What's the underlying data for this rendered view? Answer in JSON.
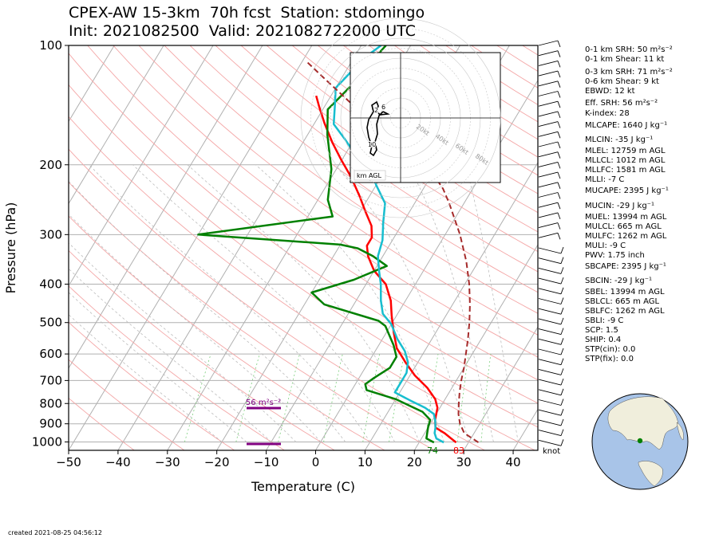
{
  "header": {
    "title_line1": "CPEX-AW 15-3km  70h fcst  Station: stdomingo",
    "title_line2": "Init: 2021082500  Valid: 2021082722000 UTC"
  },
  "footer": {
    "created": "created 2021-08-25 04:56:12"
  },
  "indices": [
    "0-1 km SRH: 50 m²s⁻²",
    "0-1 km Shear: 11 kt",
    "0-3 km SRH: 71 m²s⁻²",
    "0-6 km Shear: 9 kt",
    "EBWD: 12 kt",
    "Eff. SRH: 56 m²s⁻²",
    "K-index: 28",
    "MLCAPE: 1640 J kg⁻¹",
    "MLCIN: -35 J kg⁻¹",
    "MLEL: 12759 m AGL",
    "MLLCL: 1012 m AGL",
    "MLLFC: 1581 m AGL",
    "MLLI: -7 C",
    "MUCAPE: 2395 J kg⁻¹",
    "MUCIN: -29 J kg⁻¹",
    "MUEL: 13994 m AGL",
    "MULCL: 665 m AGL",
    "MULFC: 1262 m AGL",
    "MULI: -9 C",
    "PWV: 1.75 inch",
    "SBCAPE: 2395 J kg⁻¹",
    "SBCIN: -29 J kg⁻¹",
    "SBEL: 13994 m AGL",
    "SBLCL: 665 m AGL",
    "SBLFC: 1262 m AGL",
    "SBLI: -9 C",
    "SCP: 1.5",
    "SHIP: 0.4",
    "STP(cin): 0.0",
    "STP(fix): 0.0"
  ],
  "colors": {
    "temperature": "#ff0000",
    "dewpoint": "#008000",
    "wetbulb": "#17becf",
    "parcel": "#a52a2a",
    "srh_bar": "#800080",
    "globe_ocean": "#a8c4e8",
    "globe_land": "#f0eedc"
  },
  "chart_data": {
    "type": "line",
    "xlabel": "Temperature (C)",
    "ylabel": "Pressure (hPa)",
    "xlim": [
      -50,
      45
    ],
    "ylim": [
      1050,
      100
    ],
    "yscale": "log",
    "x_ticks": [
      "−50",
      "−40",
      "−30",
      "−20",
      "−10",
      "0",
      "10",
      "20",
      "30",
      "40"
    ],
    "y_ticks": [
      "100",
      "200",
      "300",
      "400",
      "500",
      "600",
      "700",
      "800",
      "900",
      "1000"
    ],
    "wind_unit_label": "knot",
    "surface_dewpoint_label": "74",
    "surface_temperature_label": "83",
    "srh_label": "56 m²s⁻²",
    "grid": true,
    "series": [
      {
        "key": "temperature",
        "points": [
          [
            27.5,
            1003
          ],
          [
            26,
            980
          ],
          [
            24,
            950
          ],
          [
            21.5,
            920
          ],
          [
            20.5,
            880
          ],
          [
            20,
            850
          ],
          [
            19.5,
            820
          ],
          [
            18,
            780
          ],
          [
            15,
            730
          ],
          [
            11,
            680
          ],
          [
            7.5,
            630
          ],
          [
            4,
            580
          ],
          [
            1.5,
            530
          ],
          [
            -1,
            480
          ],
          [
            -3,
            440
          ],
          [
            -6,
            400
          ],
          [
            -10,
            370
          ],
          [
            -13,
            340
          ],
          [
            -14.5,
            320
          ],
          [
            -14.5,
            305
          ],
          [
            -16,
            285
          ],
          [
            -19,
            262
          ],
          [
            -22,
            240
          ],
          [
            -26,
            215
          ],
          [
            -30,
            195
          ],
          [
            -34,
            176
          ],
          [
            -38,
            157
          ],
          [
            -41,
            143
          ],
          [
            -43,
            134
          ]
        ]
      },
      {
        "key": "dewpoint",
        "points": [
          [
            23,
            1003
          ],
          [
            21,
            980
          ],
          [
            20.5,
            950
          ],
          [
            20,
            920
          ],
          [
            19.5,
            880
          ],
          [
            17,
            840
          ],
          [
            10,
            780
          ],
          [
            3,
            740
          ],
          [
            2,
            715
          ],
          [
            3,
            690
          ],
          [
            5,
            650
          ],
          [
            5,
            610
          ],
          [
            3,
            570
          ],
          [
            -1,
            510
          ],
          [
            -3,
            495
          ],
          [
            -16,
            450
          ],
          [
            -20,
            420
          ],
          [
            -13,
            390
          ],
          [
            -8,
            360
          ],
          [
            -12,
            340
          ],
          [
            -16,
            325
          ],
          [
            -20,
            318
          ],
          [
            -50,
            300
          ],
          [
            -25,
            270
          ],
          [
            -28,
            245
          ],
          [
            -31,
            205
          ],
          [
            -36,
            168
          ],
          [
            -39,
            145
          ],
          [
            -37,
            125
          ],
          [
            -36,
            110
          ],
          [
            -35,
            100
          ]
        ]
      },
      {
        "key": "wetbulb",
        "points": [
          [
            25,
            1003
          ],
          [
            23,
            980
          ],
          [
            22,
            950
          ],
          [
            21.5,
            920
          ],
          [
            20.5,
            880
          ],
          [
            19.5,
            850
          ],
          [
            17,
            820
          ],
          [
            13,
            785
          ],
          [
            9,
            750
          ],
          [
            9,
            710
          ],
          [
            9,
            670
          ],
          [
            8,
            630
          ],
          [
            6,
            590
          ],
          [
            3,
            550
          ],
          [
            0,
            505
          ],
          [
            -3,
            475
          ],
          [
            -5,
            440
          ],
          [
            -7,
            400
          ],
          [
            -9,
            370
          ],
          [
            -11,
            340
          ],
          [
            -12,
            310
          ],
          [
            -14,
            280
          ],
          [
            -16,
            250
          ],
          [
            -20,
            225
          ],
          [
            -23,
            205
          ],
          [
            -28,
            188
          ],
          [
            -32,
            172
          ],
          [
            -36,
            158
          ],
          [
            -38,
            142
          ],
          [
            -40,
            128
          ],
          [
            -39,
            118
          ],
          [
            -38,
            108
          ],
          [
            -36,
            100
          ]
        ]
      },
      {
        "key": "parcel",
        "points": [
          [
            32,
            1003
          ],
          [
            28,
            950
          ],
          [
            26,
            900
          ],
          [
            24.5,
            850
          ],
          [
            23.3,
            800
          ],
          [
            22.1,
            750
          ],
          [
            21,
            700
          ],
          [
            20,
            650
          ],
          [
            18.7,
            600
          ],
          [
            17.3,
            550
          ],
          [
            15.6,
            500
          ],
          [
            13.5,
            450
          ],
          [
            10.9,
            400
          ],
          [
            7.5,
            350
          ],
          [
            3,
            300
          ],
          [
            -3,
            250
          ],
          [
            -6,
            230
          ],
          [
            -10,
            210
          ],
          [
            -13,
            200
          ],
          [
            -19,
            180
          ],
          [
            -27,
            160
          ],
          [
            -35,
            140
          ],
          [
            -44,
            120
          ],
          [
            -49,
            110
          ]
        ]
      }
    ]
  }
}
